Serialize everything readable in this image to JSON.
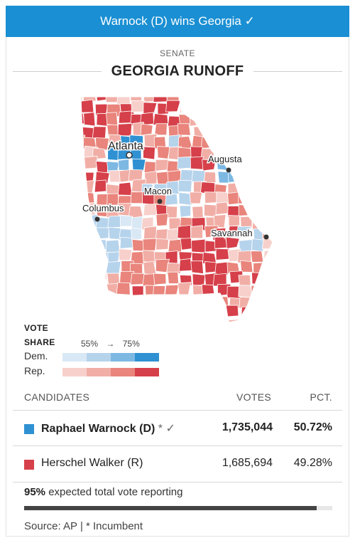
{
  "banner": {
    "text": "Warnock (D) wins Georgia ✓"
  },
  "header": {
    "kicker": "SENATE",
    "title": "GEORGIA RUNOFF"
  },
  "map": {
    "cities": [
      {
        "name": "Atlanta"
      },
      {
        "name": "Augusta"
      },
      {
        "name": "Macon"
      },
      {
        "name": "Columbus"
      },
      {
        "name": "Savannah"
      }
    ],
    "colors": {
      "dem": [
        "#d9e8f5",
        "#b6d3ec",
        "#7db8e3",
        "#2f91d2"
      ],
      "rep": [
        "#f7d0cb",
        "#f1aea6",
        "#e9857c",
        "#d6404a"
      ],
      "border": "#ffffff"
    }
  },
  "legend": {
    "title_line1": "VOTE",
    "title_line2": "SHARE",
    "scale_low": "55%",
    "arrow": "→",
    "scale_high": "75%",
    "dem_label": "Dem.",
    "rep_label": "Rep."
  },
  "table": {
    "headers": {
      "candidates": "CANDIDATES",
      "votes": "VOTES",
      "pct": "PCT."
    },
    "rows": [
      {
        "name": "Raphael Warnock (D)",
        "marks": " * ✓",
        "votes": "1,735,044",
        "pct": "50.72%",
        "color": "#2f91d2"
      },
      {
        "name": "Herschel Walker (R)",
        "marks": "",
        "votes": "1,685,694",
        "pct": "49.28%",
        "color": "#d6404a"
      }
    ]
  },
  "reporting": {
    "percent": "95%",
    "text": " expected total vote reporting",
    "fraction": 0.95
  },
  "source": {
    "text": "Source: AP  | * Incumbent"
  }
}
